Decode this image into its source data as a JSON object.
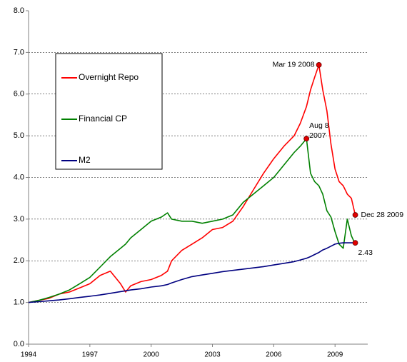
{
  "chart_data": {
    "type": "line",
    "x": [
      1994,
      1994.5,
      1995,
      1995.5,
      1996,
      1996.5,
      1997,
      1997.5,
      1998,
      1998.5,
      1998.75,
      1999,
      1999.5,
      2000,
      2000.5,
      2000.8,
      2001,
      2001.5,
      2002,
      2002.5,
      2003,
      2003.5,
      2004,
      2004.5,
      2005,
      2005.5,
      2006,
      2006.5,
      2007,
      2007.3,
      2007.6,
      2007.8,
      2008,
      2008.21,
      2008.4,
      2008.6,
      2008.8,
      2009,
      2009.2,
      2009.4,
      2009.6,
      2009.8,
      2009.99
    ],
    "series": [
      {
        "name": "Overnight Repo",
        "color": "#ff0000",
        "values": [
          1.0,
          1.05,
          1.1,
          1.2,
          1.25,
          1.35,
          1.45,
          1.65,
          1.75,
          1.45,
          1.25,
          1.4,
          1.5,
          1.55,
          1.65,
          1.75,
          2.0,
          2.25,
          2.4,
          2.55,
          2.75,
          2.8,
          2.95,
          3.3,
          3.7,
          4.1,
          4.45,
          4.75,
          5.0,
          5.3,
          5.7,
          6.1,
          6.4,
          6.7,
          6.1,
          5.6,
          4.8,
          4.2,
          3.9,
          3.8,
          3.6,
          3.5,
          3.1
        ]
      },
      {
        "name": "Financial CP",
        "color": "#008000",
        "values": [
          1.0,
          1.05,
          1.12,
          1.2,
          1.3,
          1.45,
          1.6,
          1.85,
          2.1,
          2.3,
          2.4,
          2.55,
          2.75,
          2.95,
          3.05,
          3.15,
          3.0,
          2.95,
          2.95,
          2.9,
          2.95,
          3.0,
          3.1,
          3.4,
          3.6,
          3.8,
          4.0,
          4.3,
          4.6,
          4.75,
          4.93,
          4.1,
          3.9,
          3.8,
          3.6,
          3.2,
          3.05,
          2.7,
          2.4,
          2.3,
          3.0,
          2.6,
          2.4
        ]
      },
      {
        "name": "M2",
        "color": "#000080",
        "values": [
          1.0,
          1.02,
          1.04,
          1.06,
          1.09,
          1.12,
          1.15,
          1.18,
          1.22,
          1.26,
          1.28,
          1.3,
          1.33,
          1.37,
          1.4,
          1.43,
          1.47,
          1.55,
          1.62,
          1.66,
          1.7,
          1.74,
          1.77,
          1.8,
          1.83,
          1.86,
          1.9,
          1.94,
          1.98,
          2.02,
          2.06,
          2.1,
          2.15,
          2.2,
          2.26,
          2.3,
          2.35,
          2.4,
          2.42,
          2.43,
          2.43,
          2.43,
          2.43
        ]
      }
    ],
    "xlim": [
      1994,
      2010.6
    ],
    "xticks": [
      1994,
      1997,
      2000,
      2003,
      2006,
      2009
    ],
    "ylim": [
      0,
      8
    ],
    "yticks": [
      {
        "value": 0,
        "label": "0.0"
      },
      {
        "value": 1,
        "label": "1.0"
      },
      {
        "value": 2,
        "label": "2.0"
      },
      {
        "value": 3,
        "label": "3.0"
      },
      {
        "value": 4,
        "label": "4.0"
      },
      {
        "value": 5,
        "label": "5.0"
      },
      {
        "value": 6,
        "label": "6.0"
      },
      {
        "value": 7,
        "label": "7.0"
      },
      {
        "value": 8,
        "label": "8.0"
      }
    ],
    "grid": true,
    "legend": "upper left",
    "annotations": [
      {
        "lines": [
          "Mar 19 2008"
        ],
        "x": 2008.21,
        "y": 6.7
      },
      {
        "lines": [
          "Aug 8",
          "2007"
        ],
        "x": 2007.6,
        "y": 4.93
      },
      {
        "lines": [
          "Dec 28 2009"
        ],
        "x": 2009.99,
        "y": 3.1
      },
      {
        "lines": [
          "2.43"
        ],
        "x": 2009.99,
        "y": 2.43
      }
    ]
  }
}
